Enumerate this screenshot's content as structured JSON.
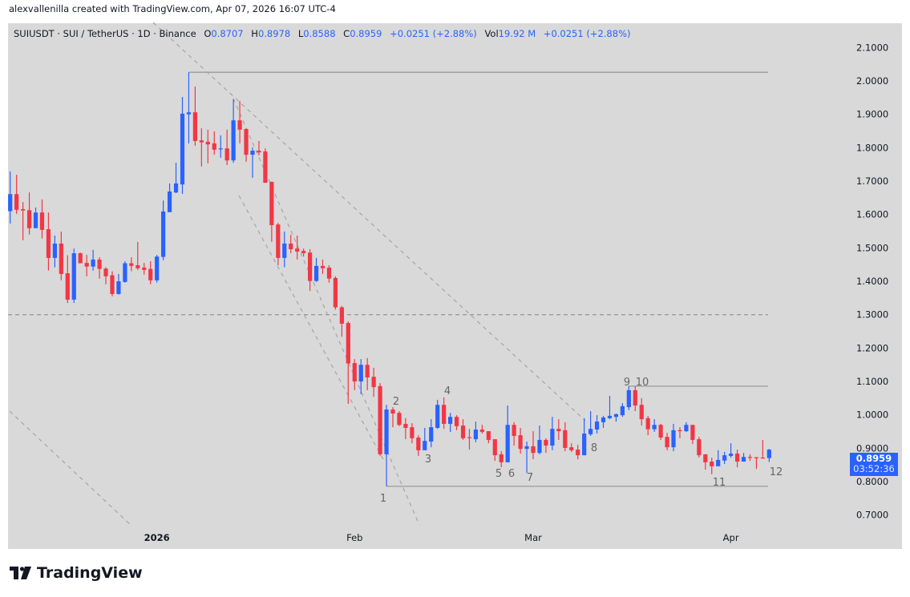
{
  "credit": "alexvallenilla created with TradingView.com, Apr 07, 2026 16:07 UTC-4",
  "legend": {
    "symbol": "SUIUSDT · SUI / TetherUS · 1D · Binance",
    "o_label": "O",
    "o": "0.8707",
    "h_label": "H",
    "h": "0.8978",
    "l_label": "L",
    "l": "0.8588",
    "c_label": "C",
    "c": "0.8959",
    "change": "+0.0251 (+2.88%)",
    "vol_label": "Vol",
    "vol": "19.92 M",
    "vol_change": "+0.0251 (+2.88%)"
  },
  "last_price": {
    "price": "0.8959",
    "countdown": "03:52:36"
  },
  "brand": "TradingView",
  "chart_data": {
    "type": "candlestick",
    "interval": "1D",
    "colors": {
      "up": "#2962ff",
      "down": "#f23645",
      "background": "#d9d9d9",
      "drawing": "#9a9a9a"
    },
    "y_ticks": [
      "2.1000",
      "2.0000",
      "1.9000",
      "1.8000",
      "1.7000",
      "1.6000",
      "1.5000",
      "1.4000",
      "1.3000",
      "1.2000",
      "1.1000",
      "1.0000",
      "0.9000",
      "0.8000",
      "0.7000"
    ],
    "ylim": [
      0.69,
      2.2
    ],
    "x_ticks": [
      {
        "label": "2026",
        "date": "2026-01-01",
        "bold": true
      },
      {
        "label": "Feb",
        "date": "2026-02-01",
        "bold": false
      },
      {
        "label": "Mar",
        "date": "2026-03-01",
        "bold": false
      },
      {
        "label": "Apr",
        "date": "2026-04-01",
        "bold": false
      }
    ],
    "horizontal_levels": [
      {
        "price": 2.026,
        "style": "solid",
        "from": "2026-01-06"
      },
      {
        "price": 1.3,
        "style": "dashed",
        "from": "2025-12-09"
      },
      {
        "price": 1.086,
        "style": "solid",
        "from": "2026-03-16"
      },
      {
        "price": 0.786,
        "style": "solid",
        "from": "2026-02-06"
      }
    ],
    "wave_labels": [
      "1",
      "2",
      "3",
      "4",
      "5",
      "6",
      "7",
      "8",
      "9",
      "10",
      "11",
      "12"
    ],
    "candles_format": [
      "date",
      "open",
      "high",
      "low",
      "close"
    ],
    "candles": [
      [
        "2025-12-09",
        1.61,
        1.729,
        1.573,
        1.661
      ],
      [
        "2025-12-10",
        1.661,
        1.719,
        1.602,
        1.614
      ],
      [
        "2025-12-11",
        1.616,
        1.637,
        1.523,
        1.612
      ],
      [
        "2025-12-12",
        1.613,
        1.666,
        1.54,
        1.559
      ],
      [
        "2025-12-13",
        1.559,
        1.621,
        1.559,
        1.606
      ],
      [
        "2025-12-14",
        1.606,
        1.645,
        1.528,
        1.554
      ],
      [
        "2025-12-15",
        1.556,
        1.606,
        1.432,
        1.47
      ],
      [
        "2025-12-16",
        1.47,
        1.537,
        1.442,
        1.513
      ],
      [
        "2025-12-17",
        1.513,
        1.549,
        1.403,
        1.422
      ],
      [
        "2025-12-18",
        1.424,
        1.478,
        1.335,
        1.345
      ],
      [
        "2025-12-19",
        1.345,
        1.498,
        1.335,
        1.484
      ],
      [
        "2025-12-20",
        1.484,
        1.486,
        1.454,
        1.454
      ],
      [
        "2025-12-21",
        1.455,
        1.479,
        1.415,
        1.444
      ],
      [
        "2025-12-22",
        1.444,
        1.494,
        1.432,
        1.465
      ],
      [
        "2025-12-23",
        1.465,
        1.472,
        1.408,
        1.437
      ],
      [
        "2025-12-24",
        1.438,
        1.442,
        1.391,
        1.415
      ],
      [
        "2025-12-25",
        1.418,
        1.43,
        1.355,
        1.362
      ],
      [
        "2025-12-26",
        1.362,
        1.422,
        1.36,
        1.4
      ],
      [
        "2025-12-27",
        1.398,
        1.46,
        1.396,
        1.454
      ],
      [
        "2025-12-28",
        1.454,
        1.472,
        1.43,
        1.446
      ],
      [
        "2025-12-29",
        1.448,
        1.518,
        1.434,
        1.439
      ],
      [
        "2025-12-30",
        1.441,
        1.455,
        1.42,
        1.434
      ],
      [
        "2025-12-31",
        1.437,
        1.46,
        1.391,
        1.403
      ],
      [
        "2026-01-01",
        1.403,
        1.479,
        1.396,
        1.474
      ],
      [
        "2026-01-02",
        1.473,
        1.642,
        1.463,
        1.609
      ],
      [
        "2026-01-03",
        1.607,
        1.693,
        1.607,
        1.669
      ],
      [
        "2026-01-04",
        1.666,
        1.755,
        1.664,
        1.693
      ],
      [
        "2026-01-05",
        1.69,
        1.952,
        1.662,
        1.902
      ],
      [
        "2026-01-06",
        1.9,
        2.026,
        1.813,
        1.906
      ],
      [
        "2026-01-07",
        1.906,
        1.983,
        1.806,
        1.82
      ],
      [
        "2026-01-08",
        1.822,
        1.858,
        1.744,
        1.816
      ],
      [
        "2026-01-09",
        1.818,
        1.854,
        1.753,
        1.81
      ],
      [
        "2026-01-10",
        1.813,
        1.849,
        1.779,
        1.794
      ],
      [
        "2026-01-11",
        1.796,
        1.837,
        1.77,
        1.798
      ],
      [
        "2026-01-12",
        1.798,
        1.854,
        1.748,
        1.762
      ],
      [
        "2026-01-13",
        1.762,
        1.945,
        1.755,
        1.882
      ],
      [
        "2026-01-14",
        1.882,
        1.94,
        1.813,
        1.854
      ],
      [
        "2026-01-15",
        1.856,
        1.858,
        1.758,
        1.779
      ],
      [
        "2026-01-16",
        1.779,
        1.801,
        1.71,
        1.791
      ],
      [
        "2026-01-17",
        1.791,
        1.82,
        1.777,
        1.786
      ],
      [
        "2026-01-18",
        1.789,
        1.798,
        1.695,
        1.695
      ],
      [
        "2026-01-19",
        1.698,
        1.698,
        1.518,
        1.568
      ],
      [
        "2026-01-20",
        1.57,
        1.575,
        1.448,
        1.47
      ],
      [
        "2026-01-21",
        1.47,
        1.549,
        1.442,
        1.513
      ],
      [
        "2026-01-22",
        1.513,
        1.539,
        1.484,
        1.496
      ],
      [
        "2026-01-23",
        1.498,
        1.537,
        1.465,
        1.489
      ],
      [
        "2026-01-24",
        1.491,
        1.498,
        1.474,
        1.484
      ],
      [
        "2026-01-25",
        1.486,
        1.496,
        1.371,
        1.401
      ],
      [
        "2026-01-26",
        1.401,
        1.47,
        1.398,
        1.446
      ],
      [
        "2026-01-27",
        1.446,
        1.465,
        1.422,
        1.439
      ],
      [
        "2026-01-28",
        1.441,
        1.448,
        1.396,
        1.408
      ],
      [
        "2026-01-29",
        1.41,
        1.415,
        1.315,
        1.322
      ],
      [
        "2026-01-30",
        1.322,
        1.326,
        1.234,
        1.273
      ],
      [
        "2026-01-31",
        1.275,
        1.28,
        1.033,
        1.154
      ],
      [
        "2026-02-01",
        1.155,
        1.167,
        1.074,
        1.1
      ],
      [
        "2026-02-02",
        1.1,
        1.167,
        1.062,
        1.15
      ],
      [
        "2026-02-03",
        1.15,
        1.17,
        1.074,
        1.112
      ],
      [
        "2026-02-04",
        1.114,
        1.141,
        1.054,
        1.083
      ],
      [
        "2026-02-05",
        1.086,
        1.095,
        0.877,
        0.882
      ],
      [
        "2026-02-06",
        0.882,
        1.03,
        0.786,
        1.016
      ],
      [
        "2026-02-07",
        1.016,
        1.023,
        0.963,
        1.004
      ],
      [
        "2026-02-08",
        1.006,
        1.011,
        0.966,
        0.97
      ],
      [
        "2026-02-09",
        0.973,
        0.99,
        0.927,
        0.961
      ],
      [
        "2026-02-10",
        0.963,
        0.975,
        0.915,
        0.93
      ],
      [
        "2026-02-11",
        0.932,
        0.939,
        0.877,
        0.894
      ],
      [
        "2026-02-12",
        0.894,
        0.961,
        0.894,
        0.922
      ],
      [
        "2026-02-13",
        0.92,
        0.987,
        0.903,
        0.963
      ],
      [
        "2026-02-14",
        0.961,
        1.045,
        0.958,
        1.03
      ],
      [
        "2026-02-15",
        1.03,
        1.052,
        0.958,
        0.973
      ],
      [
        "2026-02-16",
        0.973,
        1.006,
        0.949,
        0.994
      ],
      [
        "2026-02-17",
        0.994,
        0.999,
        0.954,
        0.966
      ],
      [
        "2026-02-18",
        0.968,
        0.987,
        0.925,
        0.93
      ],
      [
        "2026-02-19",
        0.933,
        0.958,
        0.896,
        0.931
      ],
      [
        "2026-02-20",
        0.927,
        0.98,
        0.918,
        0.956
      ],
      [
        "2026-02-21",
        0.956,
        0.97,
        0.944,
        0.949
      ],
      [
        "2026-02-22",
        0.951,
        0.951,
        0.915,
        0.925
      ],
      [
        "2026-02-23",
        0.927,
        0.927,
        0.862,
        0.879
      ],
      [
        "2026-02-24",
        0.882,
        0.891,
        0.843,
        0.858
      ],
      [
        "2026-02-25",
        0.858,
        1.028,
        0.858,
        0.97
      ],
      [
        "2026-02-26",
        0.97,
        0.978,
        0.908,
        0.937
      ],
      [
        "2026-02-27",
        0.939,
        0.961,
        0.884,
        0.898
      ],
      [
        "2026-02-28",
        0.898,
        0.92,
        0.826,
        0.906
      ],
      [
        "2026-03-01",
        0.906,
        0.951,
        0.867,
        0.886
      ],
      [
        "2026-03-02",
        0.886,
        0.968,
        0.882,
        0.925
      ],
      [
        "2026-03-03",
        0.925,
        0.93,
        0.886,
        0.908
      ],
      [
        "2026-03-04",
        0.908,
        0.994,
        0.894,
        0.958
      ],
      [
        "2026-03-05",
        0.958,
        0.987,
        0.925,
        0.951
      ],
      [
        "2026-03-06",
        0.954,
        0.978,
        0.891,
        0.901
      ],
      [
        "2026-03-07",
        0.903,
        0.915,
        0.889,
        0.894
      ],
      [
        "2026-03-08",
        0.896,
        0.91,
        0.867,
        0.879
      ],
      [
        "2026-03-09",
        0.879,
        0.99,
        0.879,
        0.944
      ],
      [
        "2026-03-10",
        0.942,
        1.011,
        0.937,
        0.958
      ],
      [
        "2026-03-11",
        0.956,
        0.999,
        0.944,
        0.98
      ],
      [
        "2026-03-12",
        0.978,
        0.997,
        0.961,
        0.992
      ],
      [
        "2026-03-13",
        0.99,
        1.057,
        0.987,
        0.997
      ],
      [
        "2026-03-14",
        0.994,
        1.004,
        0.98,
        1.002
      ],
      [
        "2026-03-15",
        0.999,
        1.035,
        0.994,
        1.026
      ],
      [
        "2026-03-16",
        1.023,
        1.086,
        1.014,
        1.074
      ],
      [
        "2026-03-17",
        1.074,
        1.086,
        1.011,
        1.028
      ],
      [
        "2026-03-18",
        1.03,
        1.05,
        0.968,
        0.987
      ],
      [
        "2026-03-19",
        0.99,
        0.997,
        0.939,
        0.957
      ],
      [
        "2026-03-20",
        0.957,
        0.987,
        0.949,
        0.97
      ],
      [
        "2026-03-21",
        0.97,
        0.973,
        0.925,
        0.932
      ],
      [
        "2026-03-22",
        0.934,
        0.946,
        0.894,
        0.903
      ],
      [
        "2026-03-23",
        0.903,
        0.973,
        0.891,
        0.954
      ],
      [
        "2026-03-24",
        0.954,
        0.963,
        0.93,
        0.951
      ],
      [
        "2026-03-25",
        0.951,
        0.978,
        0.949,
        0.97
      ],
      [
        "2026-03-26",
        0.97,
        0.97,
        0.913,
        0.925
      ],
      [
        "2026-03-27",
        0.927,
        0.934,
        0.872,
        0.879
      ],
      [
        "2026-03-28",
        0.882,
        0.882,
        0.836,
        0.858
      ],
      [
        "2026-03-29",
        0.86,
        0.872,
        0.822,
        0.846
      ],
      [
        "2026-03-30",
        0.846,
        0.894,
        0.846,
        0.865
      ],
      [
        "2026-03-31",
        0.863,
        0.889,
        0.853,
        0.879
      ],
      [
        "2026-04-01",
        0.877,
        0.915,
        0.872,
        0.884
      ],
      [
        "2026-04-02",
        0.884,
        0.896,
        0.843,
        0.86
      ],
      [
        "2026-04-03",
        0.86,
        0.886,
        0.86,
        0.874
      ],
      [
        "2026-04-04",
        0.874,
        0.882,
        0.862,
        0.872
      ],
      [
        "2026-04-05",
        0.873,
        0.874,
        0.838,
        0.87
      ],
      [
        "2026-04-06",
        0.872,
        0.925,
        0.87,
        0.8707
      ],
      [
        "2026-04-07",
        0.8707,
        0.8978,
        0.8588,
        0.8959
      ]
    ]
  }
}
